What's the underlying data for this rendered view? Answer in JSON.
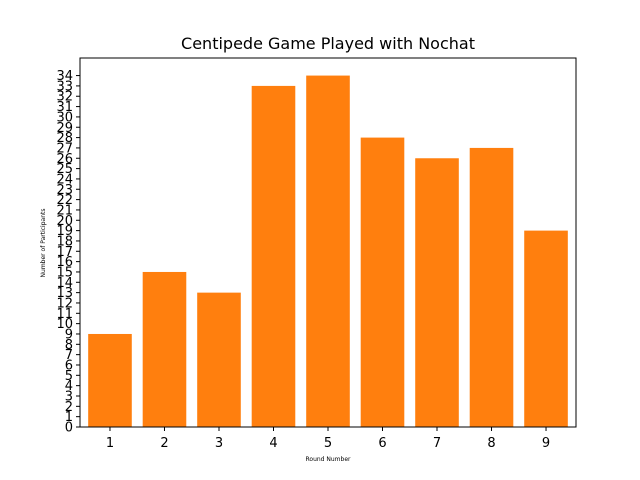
{
  "chart_data": {
    "type": "bar",
    "title": "Centipede Game Played with Nochat",
    "xlabel": "Round Number",
    "ylabel": "Number of Participants",
    "categories": [
      "1",
      "2",
      "3",
      "4",
      "5",
      "6",
      "7",
      "8",
      "9"
    ],
    "values": [
      9,
      15,
      13,
      33,
      34,
      28,
      26,
      27,
      19
    ],
    "ylim": [
      0,
      35.7
    ],
    "yticks": [
      0,
      1,
      2,
      3,
      4,
      5,
      6,
      7,
      8,
      9,
      10,
      11,
      12,
      13,
      14,
      15,
      16,
      17,
      18,
      19,
      20,
      21,
      22,
      23,
      24,
      25,
      26,
      27,
      28,
      29,
      30,
      31,
      32,
      33,
      34
    ],
    "bar_color": "#ff7f0e",
    "grid": false,
    "legend": false
  }
}
